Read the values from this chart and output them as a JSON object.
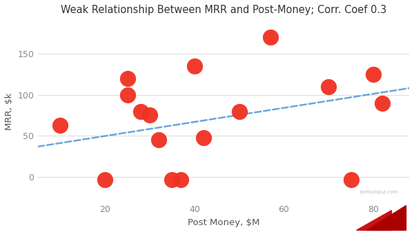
{
  "title": "Weak Relationship Between MRR and Post-Money; Corr. Coef 0.3",
  "xlabel": "Post Money, $M",
  "ylabel": "MRR, $k",
  "scatter_x": [
    10,
    20,
    25,
    25,
    28,
    30,
    32,
    35,
    37,
    40,
    42,
    50,
    57,
    70,
    75,
    80,
    82
  ],
  "scatter_y": [
    63,
    -3,
    120,
    100,
    80,
    75,
    45,
    -3,
    -3,
    135,
    48,
    80,
    170,
    110,
    -3,
    125,
    90
  ],
  "trend_x": [
    5,
    88
  ],
  "trend_y": [
    37,
    108
  ],
  "dot_color": "#f03020",
  "trend_color": "#5b9bd5",
  "background_color": "#ffffff",
  "title_fontsize": 10.5,
  "axis_label_fontsize": 9.5,
  "tick_fontsize": 9,
  "xlim": [
    5,
    88
  ],
  "ylim": [
    -30,
    190
  ],
  "yticks": [
    0,
    50,
    100,
    150
  ],
  "xticks": [
    20,
    40,
    60,
    80
  ],
  "marker_size": 280,
  "watermark": "tomtunguz.com"
}
